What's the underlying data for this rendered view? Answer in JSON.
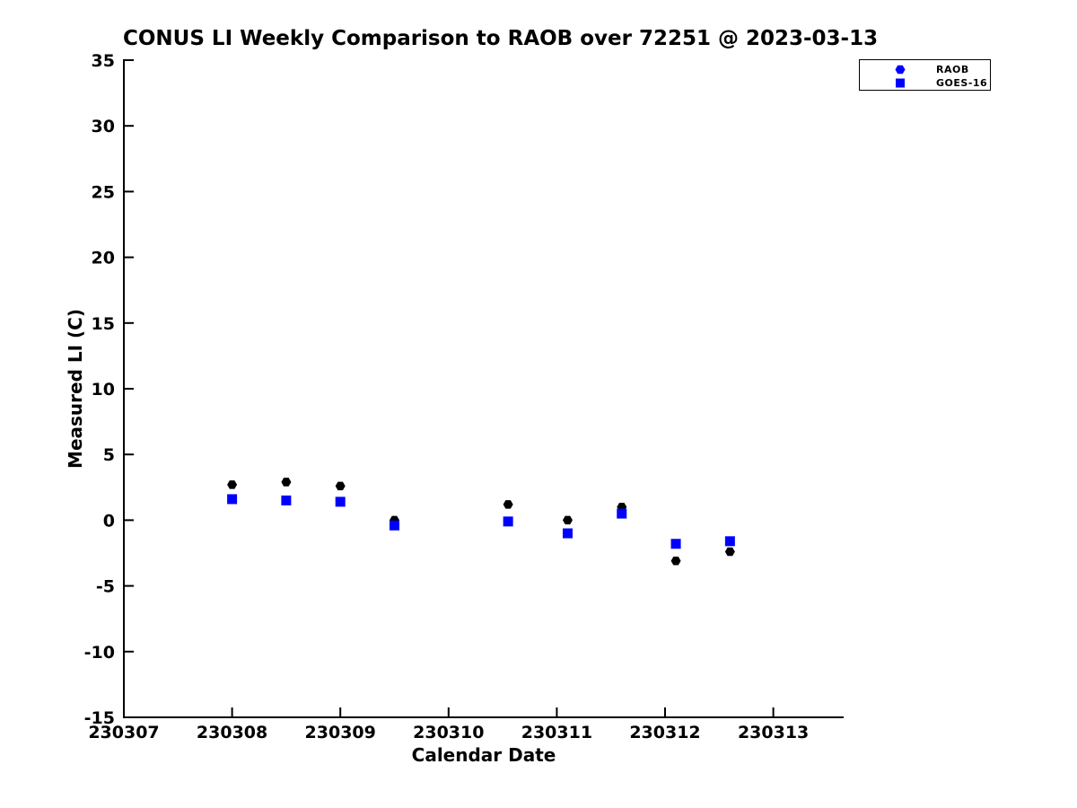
{
  "figure": {
    "background": "#ffffff",
    "text_color": "#000000",
    "axis_color": "#000000"
  },
  "chart_data": {
    "type": "scatter",
    "title": "CONUS LI Weekly Comparison to RAOB over 72251 @ 2023-03-13",
    "xlabel": "Calendar Date",
    "ylabel": "Measured LI (C)",
    "xlim": [
      230307,
      230313.65
    ],
    "ylim": [
      -15,
      35
    ],
    "grid": false,
    "x_ticks": [
      230307,
      230308,
      230309,
      230310,
      230311,
      230312,
      230313
    ],
    "x_tick_labels": [
      "230307",
      "230308",
      "230309",
      "230310",
      "230311",
      "230312",
      "230313"
    ],
    "y_ticks": [
      -15,
      -10,
      -5,
      0,
      5,
      10,
      15,
      20,
      25,
      30,
      35
    ],
    "y_tick_labels": [
      "-15",
      "-10",
      "-5",
      "0",
      "5",
      "10",
      "15",
      "20",
      "25",
      "30",
      "35"
    ],
    "legend": {
      "position": "top-right",
      "border": true,
      "entries": [
        "RAOB",
        "GOES-16"
      ]
    },
    "series": [
      {
        "name": "RAOB",
        "marker": "hexagon",
        "marker_color": "#000000",
        "legend_marker_color": "#0000ff",
        "x": [
          230308,
          230308.5,
          230309,
          230309.5,
          230310.55,
          230311.1,
          230311.6,
          230312.1,
          230312.6
        ],
        "y": [
          2.7,
          2.9,
          2.6,
          0.0,
          1.2,
          0.0,
          1.0,
          -3.1,
          -2.4
        ]
      },
      {
        "name": "GOES-16",
        "marker": "square",
        "marker_color": "#0000ff",
        "legend_marker_color": "#0000ff",
        "x": [
          230308,
          230308.5,
          230309,
          230309.5,
          230310.55,
          230311.1,
          230311.6,
          230312.1,
          230312.6
        ],
        "y": [
          1.6,
          1.5,
          1.4,
          -0.4,
          -0.1,
          -1.0,
          0.5,
          -1.8,
          -1.6
        ]
      }
    ]
  }
}
